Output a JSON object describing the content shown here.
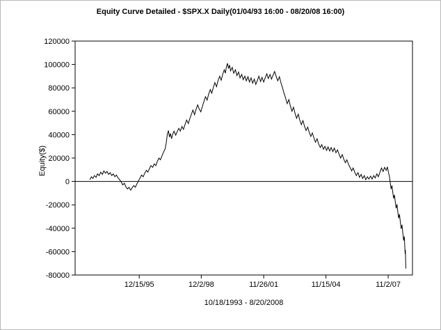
{
  "window": {
    "background": "#ffffff",
    "border_color": "#b8b8b8"
  },
  "title": "Equity Curve Detailed - $SPX.X Daily(01/04/93 16:00 - 08/20/08 16:00)",
  "chart_data": {
    "type": "line",
    "title": "Equity Curve Detailed - $SPX.X Daily(01/04/93 16:00 - 08/20/08 16:00)",
    "ylabel": "Equity($)",
    "xlabel": "10/18/1993 - 8/20/2008",
    "line_color": "#000000",
    "grid": false,
    "legend": "none",
    "ylim": [
      -80000,
      120000
    ],
    "xlim": [
      1992.9,
      2009.0
    ],
    "zero_line": 0,
    "y_ticks": [
      {
        "value": 120000,
        "label": "120000"
      },
      {
        "value": 100000,
        "label": "100000"
      },
      {
        "value": 80000,
        "label": "80000"
      },
      {
        "value": 60000,
        "label": "60000"
      },
      {
        "value": 40000,
        "label": "40000"
      },
      {
        "value": 20000,
        "label": "20000"
      },
      {
        "value": 0,
        "label": "0"
      },
      {
        "value": -20000,
        "label": "-20000"
      },
      {
        "value": -40000,
        "label": "-40000"
      },
      {
        "value": -60000,
        "label": "-60000"
      },
      {
        "value": -80000,
        "label": "-80000"
      }
    ],
    "x_ticks": [
      {
        "value": 1995.96,
        "label": "12/15/95"
      },
      {
        "value": 1998.92,
        "label": "12/2/98"
      },
      {
        "value": 2001.9,
        "label": "11/26/01"
      },
      {
        "value": 2004.87,
        "label": "11/15/04"
      },
      {
        "value": 2007.84,
        "label": "11/2/07"
      }
    ],
    "series": [
      {
        "name": "Equity",
        "points": [
          [
            1993.6,
            1500
          ],
          [
            1993.68,
            4000
          ],
          [
            1993.75,
            2500
          ],
          [
            1993.82,
            5000
          ],
          [
            1993.9,
            3500
          ],
          [
            1993.97,
            6500
          ],
          [
            1994.05,
            5000
          ],
          [
            1994.12,
            8000
          ],
          [
            1994.2,
            6000
          ],
          [
            1994.27,
            9000
          ],
          [
            1994.35,
            7000
          ],
          [
            1994.42,
            8500
          ],
          [
            1994.5,
            6000
          ],
          [
            1994.57,
            7500
          ],
          [
            1994.65,
            5000
          ],
          [
            1994.72,
            6500
          ],
          [
            1994.8,
            4000
          ],
          [
            1994.87,
            5500
          ],
          [
            1994.95,
            3000
          ],
          [
            1995.02,
            1500
          ],
          [
            1995.1,
            -500
          ],
          [
            1995.17,
            -3000
          ],
          [
            1995.25,
            -1500
          ],
          [
            1995.32,
            -4500
          ],
          [
            1995.4,
            -6500
          ],
          [
            1995.47,
            -5000
          ],
          [
            1995.55,
            -7500
          ],
          [
            1995.62,
            -5500
          ],
          [
            1995.7,
            -3500
          ],
          [
            1995.77,
            -5000
          ],
          [
            1995.85,
            -2000
          ],
          [
            1995.92,
            500
          ],
          [
            1996.0,
            3000
          ],
          [
            1996.07,
            5500
          ],
          [
            1996.15,
            4000
          ],
          [
            1996.22,
            7000
          ],
          [
            1996.3,
            9500
          ],
          [
            1996.37,
            8000
          ],
          [
            1996.45,
            11000
          ],
          [
            1996.52,
            13500
          ],
          [
            1996.6,
            12000
          ],
          [
            1996.67,
            15000
          ],
          [
            1996.75,
            13500
          ],
          [
            1996.82,
            17000
          ],
          [
            1996.9,
            20000
          ],
          [
            1996.97,
            18500
          ],
          [
            1997.05,
            22000
          ],
          [
            1997.12,
            25000
          ],
          [
            1997.2,
            28000
          ],
          [
            1997.25,
            33000
          ],
          [
            1997.3,
            40000
          ],
          [
            1997.35,
            43500
          ],
          [
            1997.4,
            38000
          ],
          [
            1997.45,
            41000
          ],
          [
            1997.5,
            36500
          ],
          [
            1997.55,
            40000
          ],
          [
            1997.62,
            43000
          ],
          [
            1997.7,
            39500
          ],
          [
            1997.77,
            42500
          ],
          [
            1997.85,
            45500
          ],
          [
            1997.92,
            43000
          ],
          [
            1998.0,
            47000
          ],
          [
            1998.07,
            44500
          ],
          [
            1998.15,
            49000
          ],
          [
            1998.22,
            52500
          ],
          [
            1998.3,
            49500
          ],
          [
            1998.37,
            53500
          ],
          [
            1998.45,
            57500
          ],
          [
            1998.52,
            61000
          ],
          [
            1998.6,
            57000
          ],
          [
            1998.67,
            61500
          ],
          [
            1998.75,
            65500
          ],
          [
            1998.82,
            62000
          ],
          [
            1998.9,
            59500
          ],
          [
            1998.97,
            64000
          ],
          [
            1999.05,
            68500
          ],
          [
            1999.12,
            72500
          ],
          [
            1999.2,
            69500
          ],
          [
            1999.27,
            74500
          ],
          [
            1999.35,
            78500
          ],
          [
            1999.42,
            75500
          ],
          [
            1999.5,
            80500
          ],
          [
            1999.57,
            84500
          ],
          [
            1999.65,
            81000
          ],
          [
            1999.72,
            86000
          ],
          [
            1999.8,
            90000
          ],
          [
            1999.87,
            86500
          ],
          [
            1999.95,
            92000
          ],
          [
            2000.02,
            95500
          ],
          [
            2000.07,
            92500
          ],
          [
            2000.12,
            98000
          ],
          [
            2000.17,
            101000
          ],
          [
            2000.22,
            96500
          ],
          [
            2000.27,
            99500
          ],
          [
            2000.32,
            94500
          ],
          [
            2000.4,
            97500
          ],
          [
            2000.47,
            92500
          ],
          [
            2000.55,
            95500
          ],
          [
            2000.62,
            90500
          ],
          [
            2000.7,
            93500
          ],
          [
            2000.77,
            88500
          ],
          [
            2000.85,
            91500
          ],
          [
            2000.92,
            87000
          ],
          [
            2001.0,
            90000
          ],
          [
            2001.07,
            86000
          ],
          [
            2001.15,
            89500
          ],
          [
            2001.22,
            85000
          ],
          [
            2001.3,
            88500
          ],
          [
            2001.37,
            84000
          ],
          [
            2001.45,
            87500
          ],
          [
            2001.52,
            83000
          ],
          [
            2001.6,
            86500
          ],
          [
            2001.67,
            90000
          ],
          [
            2001.75,
            85500
          ],
          [
            2001.82,
            89000
          ],
          [
            2001.9,
            85000
          ],
          [
            2001.97,
            88500
          ],
          [
            2002.05,
            92000
          ],
          [
            2002.12,
            88000
          ],
          [
            2002.2,
            91500
          ],
          [
            2002.27,
            87500
          ],
          [
            2002.35,
            91000
          ],
          [
            2002.42,
            94000
          ],
          [
            2002.5,
            89500
          ],
          [
            2002.57,
            86000
          ],
          [
            2002.65,
            89500
          ],
          [
            2002.72,
            84500
          ],
          [
            2002.8,
            80000
          ],
          [
            2002.87,
            75500
          ],
          [
            2002.95,
            71000
          ],
          [
            2003.02,
            66500
          ],
          [
            2003.1,
            70000
          ],
          [
            2003.17,
            64500
          ],
          [
            2003.25,
            60000
          ],
          [
            2003.32,
            63500
          ],
          [
            2003.4,
            58000
          ],
          [
            2003.47,
            54000
          ],
          [
            2003.55,
            57500
          ],
          [
            2003.62,
            52500
          ],
          [
            2003.7,
            48500
          ],
          [
            2003.77,
            52000
          ],
          [
            2003.85,
            47000
          ],
          [
            2003.92,
            43500
          ],
          [
            2004.0,
            46500
          ],
          [
            2004.07,
            42000
          ],
          [
            2004.15,
            38500
          ],
          [
            2004.22,
            41500
          ],
          [
            2004.3,
            37000
          ],
          [
            2004.37,
            33500
          ],
          [
            2004.45,
            36500
          ],
          [
            2004.52,
            32000
          ],
          [
            2004.6,
            29000
          ],
          [
            2004.67,
            31500
          ],
          [
            2004.75,
            27500
          ],
          [
            2004.82,
            30000
          ],
          [
            2004.9,
            26500
          ],
          [
            2004.97,
            29500
          ],
          [
            2005.05,
            26000
          ],
          [
            2005.12,
            29000
          ],
          [
            2005.2,
            25500
          ],
          [
            2005.27,
            28500
          ],
          [
            2005.35,
            24500
          ],
          [
            2005.42,
            27000
          ],
          [
            2005.5,
            23000
          ],
          [
            2005.57,
            20000
          ],
          [
            2005.65,
            23000
          ],
          [
            2005.72,
            19000
          ],
          [
            2005.8,
            16000
          ],
          [
            2005.87,
            18500
          ],
          [
            2005.95,
            14500
          ],
          [
            2006.02,
            12000
          ],
          [
            2006.1,
            9000
          ],
          [
            2006.17,
            11500
          ],
          [
            2006.25,
            7500
          ],
          [
            2006.32,
            5000
          ],
          [
            2006.4,
            7500
          ],
          [
            2006.47,
            3500
          ],
          [
            2006.55,
            6000
          ],
          [
            2006.62,
            2500
          ],
          [
            2006.7,
            5000
          ],
          [
            2006.77,
            1500
          ],
          [
            2006.85,
            4000
          ],
          [
            2006.92,
            2000
          ],
          [
            2007.0,
            4500
          ],
          [
            2007.07,
            2000
          ],
          [
            2007.15,
            5000
          ],
          [
            2007.22,
            3000
          ],
          [
            2007.3,
            6500
          ],
          [
            2007.37,
            4000
          ],
          [
            2007.45,
            8000
          ],
          [
            2007.52,
            11500
          ],
          [
            2007.6,
            8500
          ],
          [
            2007.67,
            12000
          ],
          [
            2007.75,
            9500
          ],
          [
            2007.8,
            12500
          ],
          [
            2007.85,
            8000
          ],
          [
            2007.9,
            4000
          ],
          [
            2007.94,
            -1500
          ],
          [
            2007.98,
            -6500
          ],
          [
            2008.02,
            -3500
          ],
          [
            2008.06,
            -9500
          ],
          [
            2008.1,
            -14500
          ],
          [
            2008.14,
            -11500
          ],
          [
            2008.18,
            -17500
          ],
          [
            2008.22,
            -23000
          ],
          [
            2008.26,
            -19500
          ],
          [
            2008.3,
            -26000
          ],
          [
            2008.34,
            -31500
          ],
          [
            2008.38,
            -28000
          ],
          [
            2008.42,
            -34500
          ],
          [
            2008.46,
            -40500
          ],
          [
            2008.5,
            -37000
          ],
          [
            2008.54,
            -44000
          ],
          [
            2008.58,
            -50500
          ],
          [
            2008.61,
            -47000
          ],
          [
            2008.63,
            -55000
          ],
          [
            2008.65,
            -62000
          ],
          [
            2008.66,
            -58500
          ],
          [
            2008.67,
            -66000
          ],
          [
            2008.68,
            -74500
          ]
        ]
      }
    ]
  }
}
